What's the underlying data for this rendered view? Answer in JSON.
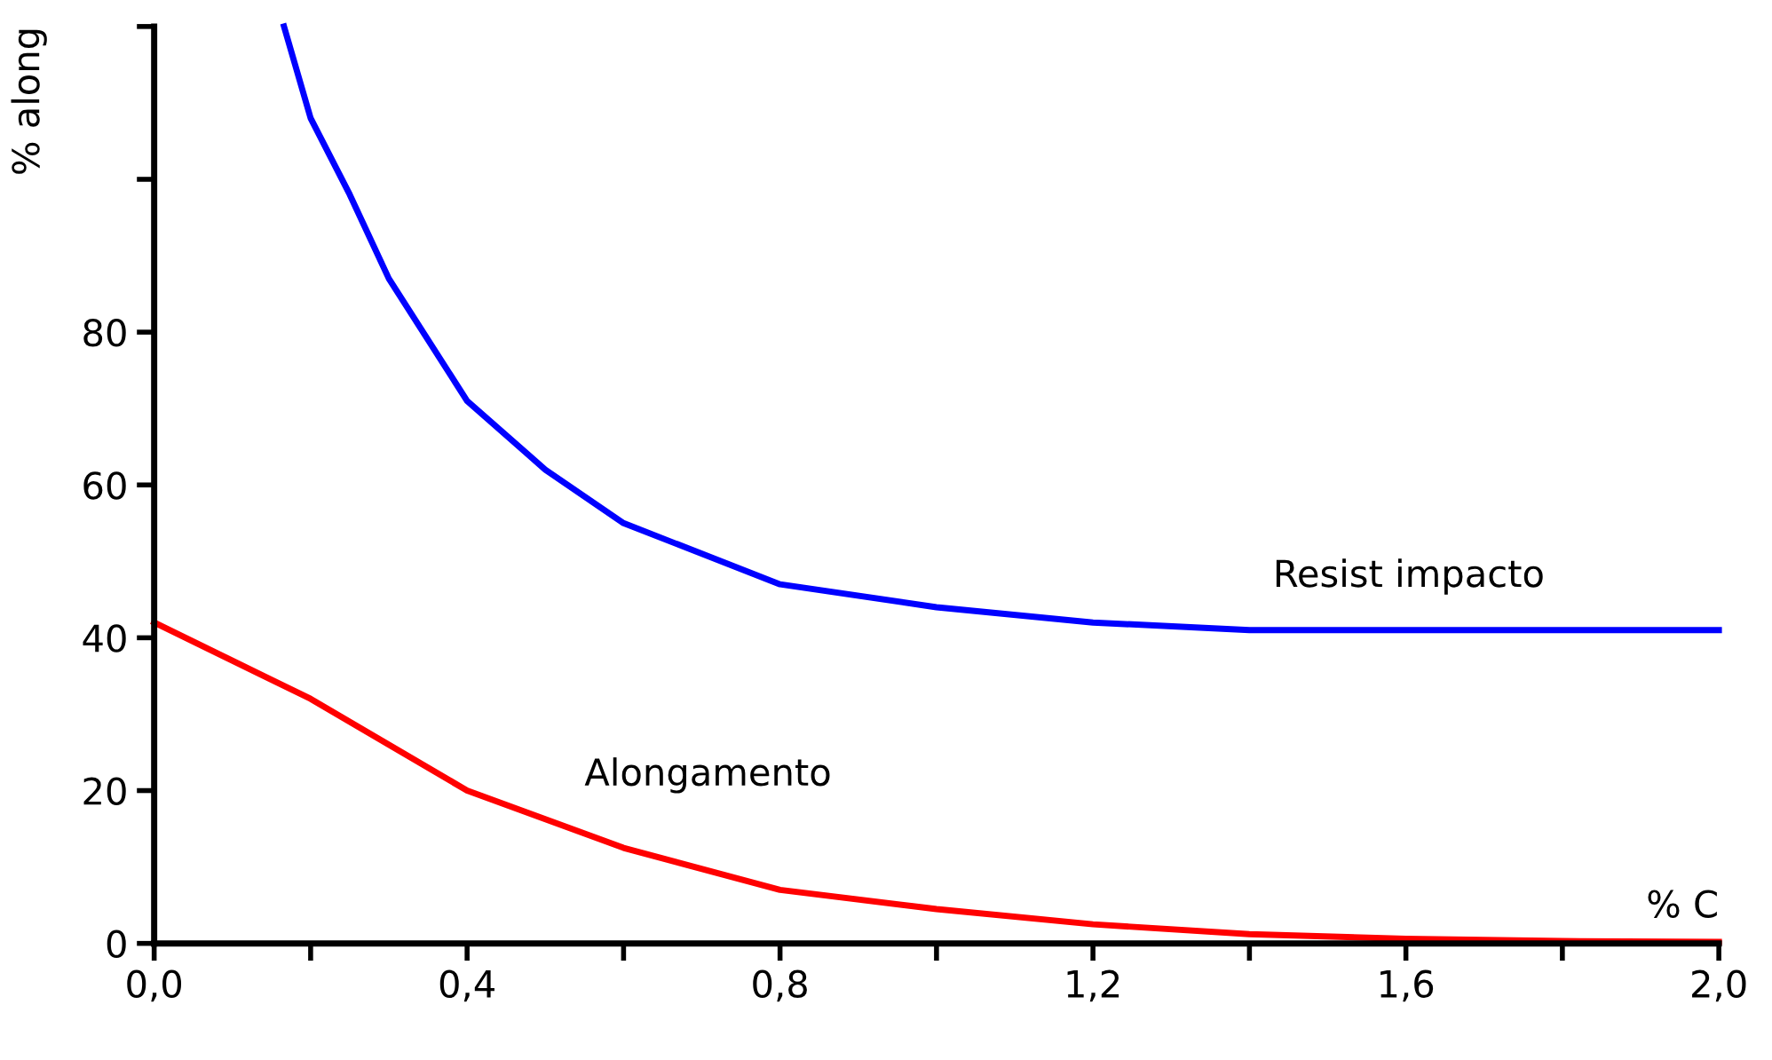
{
  "chart_data": {
    "type": "line",
    "xlabel": "% C",
    "ylabel": "% along",
    "xlim": [
      0,
      2.0
    ],
    "ylim": [
      0,
      120
    ],
    "xticks": [
      {
        "value": 0,
        "label": "0,0"
      },
      {
        "value": 0.2,
        "label": null
      },
      {
        "value": 0.4,
        "label": "0,4"
      },
      {
        "value": 0.6,
        "label": null
      },
      {
        "value": 0.8,
        "label": "0,8"
      },
      {
        "value": 1.0,
        "label": null
      },
      {
        "value": 1.2,
        "label": "1,2"
      },
      {
        "value": 1.4,
        "label": null
      },
      {
        "value": 1.6,
        "label": "1,6"
      },
      {
        "value": 1.8,
        "label": null
      },
      {
        "value": 2.0,
        "label": "2,0"
      }
    ],
    "yticks": [
      0,
      20,
      40,
      60,
      80,
      {
        "value": 100,
        "label": null
      },
      {
        "value": 120,
        "label": null
      }
    ],
    "grid": false,
    "legend": false,
    "marker": "none",
    "line_style": "solid",
    "series": [
      {
        "name": "Resist impacto",
        "color": "#0000ff",
        "x": [
          0.166,
          0.2,
          0.25,
          0.3,
          0.4,
          0.5,
          0.6,
          0.8,
          1.0,
          1.2,
          1.4,
          1.6,
          1.8,
          2.0
        ],
        "values": [
          120,
          108,
          98,
          87,
          71,
          62,
          55,
          47,
          44,
          42,
          41,
          41,
          41,
          41
        ]
      },
      {
        "name": "Alongamento",
        "color": "#ff0000",
        "x": [
          0,
          0.2,
          0.4,
          0.6,
          0.8,
          1.0,
          1.2,
          1.4,
          1.6,
          1.8,
          2.0
        ],
        "values": [
          42,
          32,
          20,
          12.5,
          7,
          4.5,
          2.5,
          1.2,
          0.6,
          0.3,
          0.2
        ]
      }
    ]
  }
}
